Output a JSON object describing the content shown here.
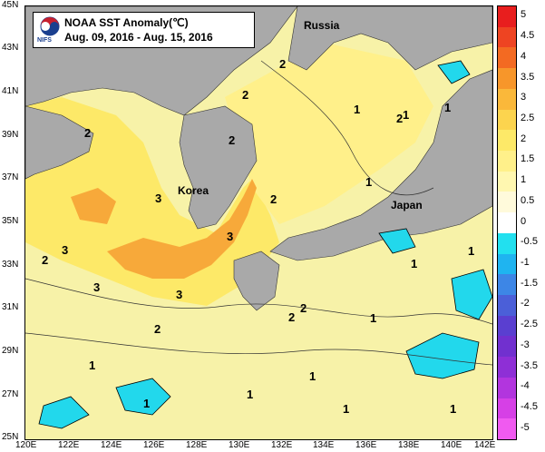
{
  "title": {
    "logo_text": "NIFS",
    "line1": "NOAA SST Anomaly(℃)",
    "line2": "Aug. 09, 2016 - Aug. 15, 2016"
  },
  "axes": {
    "lon_ticks": [
      "120E",
      "122E",
      "124E",
      "126E",
      "128E",
      "130E",
      "132E",
      "134E",
      "136E",
      "138E",
      "140E",
      "142E"
    ],
    "lat_ticks": [
      "45N",
      "43N",
      "41N",
      "39N",
      "37N",
      "35N",
      "33N",
      "31N",
      "29N",
      "27N",
      "25N"
    ]
  },
  "places": {
    "russia": "Russia",
    "korea": "Korea",
    "japan": "Japan"
  },
  "contour_labels": [
    "2",
    "2",
    "1",
    "2",
    "2",
    "3",
    "2",
    "1",
    "3",
    "2",
    "3",
    "3",
    "2",
    "3",
    "2",
    "1",
    "1",
    "1",
    "2",
    "1",
    "1",
    "1",
    "2",
    "1",
    "1",
    "1",
    "1",
    "1"
  ],
  "colorbar": {
    "labels": [
      "5",
      "4.5",
      "4",
      "3.5",
      "3",
      "2.5",
      "2",
      "1.5",
      "1",
      "0.5",
      "0",
      "-0.5",
      "-1",
      "-1.5",
      "-2",
      "-2.5",
      "-3",
      "-3.5",
      "-4",
      "-4.5",
      "-5"
    ],
    "colors": [
      "#e81e1e",
      "#ee4422",
      "#f36a22",
      "#f7962a",
      "#fab83a",
      "#fcd44e",
      "#fde968",
      "#fff08a",
      "#fff7b0",
      "#fffadb",
      "#ffffff",
      "#22e0ef",
      "#1fb4f0",
      "#3d86e6",
      "#4b5fd8",
      "#5a3fd0",
      "#7130cf",
      "#8e2fd6",
      "#b235de",
      "#d640e6",
      "#f05af0"
    ]
  },
  "colors": {
    "land": "#a9a9a9",
    "sea_base": "#f7f2a8",
    "warm_anomaly": "#fbd34a",
    "hot_anomaly": "#f7962a",
    "cold_anomaly": "#22d8ec"
  }
}
